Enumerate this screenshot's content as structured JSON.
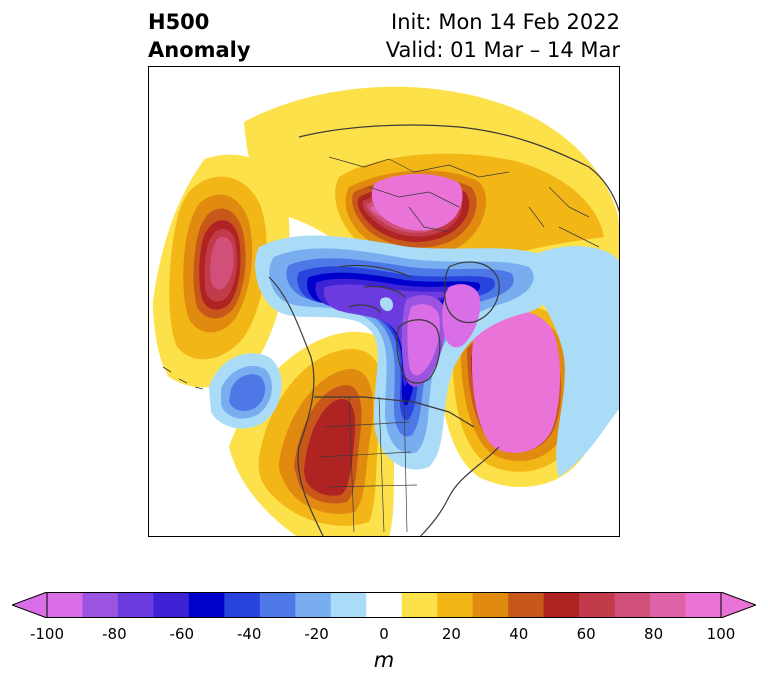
{
  "header": {
    "title_line1": "H500",
    "title_line2": "Anomaly",
    "init_label": "Init: Mon 14 Feb 2022",
    "valid_label": "Valid: 01 Mar – 14 Mar"
  },
  "colorbar": {
    "unit": "m",
    "tick_labels": [
      "-100",
      "-80",
      "-60",
      "-40",
      "-20",
      "0",
      "20",
      "40",
      "60",
      "80",
      "100"
    ],
    "levels": [
      -100,
      -90,
      -80,
      -70,
      -60,
      -50,
      -40,
      -30,
      -20,
      -10,
      10,
      20,
      30,
      40,
      50,
      60,
      70,
      80,
      90,
      100
    ],
    "colors": [
      "#d96ee6",
      "#9b54e0",
      "#6c3be0",
      "#3d22d6",
      "#0000cc",
      "#2844dc",
      "#4d78e6",
      "#78aef0",
      "#aadcf8",
      "#ffffff",
      "#fde14a",
      "#f2b616",
      "#e08b0f",
      "#c8581a",
      "#b02323",
      "#c23b4a",
      "#d0507a",
      "#de62a8",
      "#ea73d8"
    ],
    "extend": "both"
  },
  "map": {
    "projection": "north-polar-stereographic",
    "variable": "500 hPa geopotential height anomaly"
  }
}
